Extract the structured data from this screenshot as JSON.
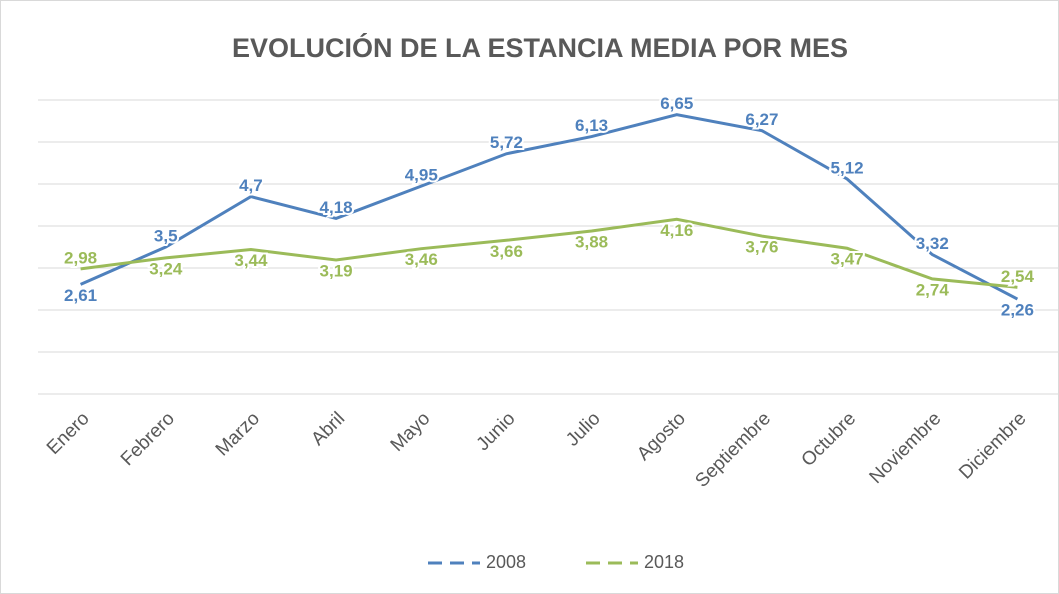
{
  "chart_data": {
    "type": "line",
    "title": "EVOLUCIÓN DE LA ESTANCIA MEDIA POR MES",
    "categories": [
      "Enero",
      "Febrero",
      "Marzo",
      "Abril",
      "Mayo",
      "Junio",
      "Julio",
      "Agosto",
      "Septiembre",
      "Octubre",
      "Noviembre",
      "Diciembre"
    ],
    "series": [
      {
        "name": "2008",
        "color": "#4f81bd",
        "values": [
          2.61,
          3.5,
          4.7,
          4.18,
          4.95,
          5.72,
          6.13,
          6.65,
          6.27,
          5.12,
          3.32,
          2.26
        ],
        "value_labels": [
          "2,61",
          "3,5",
          "4,7",
          "4,18",
          "4,95",
          "5,72",
          "6,13",
          "6,65",
          "6,27",
          "5,12",
          "3,32",
          "2,26"
        ]
      },
      {
        "name": "2018",
        "color": "#9bbb59",
        "values": [
          2.98,
          3.24,
          3.44,
          3.19,
          3.46,
          3.66,
          3.88,
          4.16,
          3.76,
          3.47,
          2.74,
          2.54
        ],
        "value_labels": [
          "2,98",
          "3,24",
          "3,44",
          "3,19",
          "3,46",
          "3,66",
          "3,88",
          "4,16",
          "3,76",
          "3,47",
          "2,74",
          "2,54"
        ]
      }
    ],
    "ylim": [
      0,
      7
    ],
    "yticks": [
      0,
      1,
      2,
      3,
      4,
      5,
      6,
      7
    ],
    "grid": true,
    "legend": "bottom"
  }
}
